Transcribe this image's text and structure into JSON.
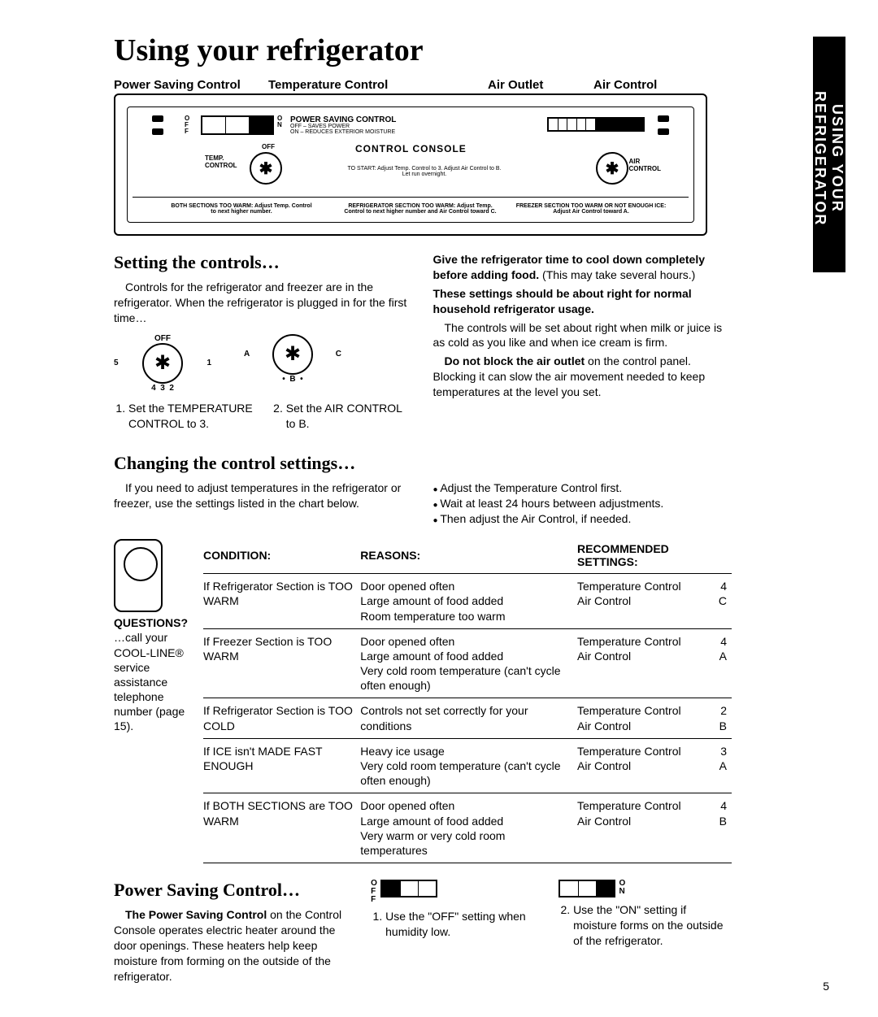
{
  "sideTab": "USING YOUR REFRIGERATOR",
  "title": "Using your refrigerator",
  "consoleLabels": {
    "l1": "Power Saving Control",
    "l2": "Temperature Control",
    "l3": "Air Outlet",
    "l4": "Air Control"
  },
  "console": {
    "psTitle": "POWER SAVING CONTROL",
    "psText": "OFF – SAVES POWER\nON – REDUCES EXTERIOR MOISTURE",
    "psLeft": "O\nF\nF",
    "psRight": "O\nN",
    "ccTitle": "CONTROL CONSOLE",
    "tempLabel": "TEMP.\nCONTROL",
    "airLabel": "AIR\nCONTROL",
    "offLabel": "OFF",
    "startText": "TO START: Adjust Temp. Control to 3. Adjust Air Control to B. Let run overnight.",
    "b1": "BOTH SECTIONS TOO WARM: Adjust Temp. Control to next higher number.",
    "b2": "REFRIGERATOR SECTION TOO WARM: Adjust Temp. Control to next higher number and Air Control toward C.",
    "b3": "FREEZER SECTION TOO WARM OR NOT ENOUGH ICE: Adjust Air Control toward A."
  },
  "setting": {
    "heading": "Setting the controls…",
    "p1": "Controls for the refrigerator and freezer are in the refrigerator. When the refrigerator is plugged in for the first time…",
    "step1": "Set the TEMPERATURE CONTROL to 3.",
    "step2": "Set the AIR CONTROL to B.",
    "dialOff": "OFF",
    "r1": "Give the refrigerator time to cool down completely before adding food.",
    "r1b": " (This may take several hours.)",
    "r2": "These settings should be about right for normal household refrigerator usage.",
    "r3": "The controls will be set about right when milk or juice is as cold as you like and when ice cream is firm.",
    "r4a": "Do not block the air outlet",
    "r4b": " on the control panel. Blocking it can slow the air movement needed to keep temperatures at the level you set."
  },
  "changing": {
    "heading": "Changing the control settings…",
    "p1": "If you need to adjust temperatures in the refrigerator or freezer, use the settings listed in the chart below.",
    "b1": "Adjust the Temperature Control first.",
    "b2": "Wait at least 24 hours between adjustments.",
    "b3": "Then adjust the Air Control, if needed."
  },
  "chart": {
    "side": {
      "questions": "QUESTIONS?",
      "text": "…call your COOL-LINE® service assistance telephone number (page 15)."
    },
    "headers": {
      "c1": "CONDITION:",
      "c2": "REASONS:",
      "c3": "RECOMMENDED SETTINGS:"
    },
    "rows": [
      {
        "cond": "If Refrigerator Section is TOO WARM",
        "reason": "Door opened often\nLarge amount of food added\nRoom temperature too warm",
        "s1": "Temperature Control",
        "v1": "4",
        "s2": "Air Control",
        "v2": "C"
      },
      {
        "cond": "If Freezer Section is TOO WARM",
        "reason": "Door opened often\nLarge amount of food added\nVery cold room temperature (can't cycle often enough)",
        "s1": "Temperature Control",
        "v1": "4",
        "s2": "Air Control",
        "v2": "A"
      },
      {
        "cond": "If Refrigerator Section is TOO COLD",
        "reason": "Controls not set correctly for your conditions",
        "s1": "Temperature Control",
        "v1": "2",
        "s2": "Air Control",
        "v2": "B"
      },
      {
        "cond": "If ICE isn't MADE FAST ENOUGH",
        "reason": "Heavy ice usage\nVery cold room temperature (can't cycle often enough)",
        "s1": "Temperature Control",
        "v1": "3",
        "s2": "Air Control",
        "v2": "A"
      },
      {
        "cond": "If BOTH SECTIONS are TOO WARM",
        "reason": "Door opened often\nLarge amount of food added\nVery warm or very cold room temperatures",
        "s1": "Temperature Control",
        "v1": "4",
        "s2": "Air Control",
        "v2": "B"
      }
    ]
  },
  "power": {
    "heading": "Power Saving Control…",
    "p1a": "The Power Saving Control",
    "p1b": " on the Control Console operates electric heater around the door openings. These heaters help keep moisture from forming on the outside of the refrigerator.",
    "midLabels": "O\nF\nF",
    "mid": "Use the \"OFF\" setting when humidity low.",
    "rightLabels": "O\nN",
    "right": "Use the \"ON\" setting if moisture forms on the outside of the refrigerator."
  },
  "pageNum": "5"
}
